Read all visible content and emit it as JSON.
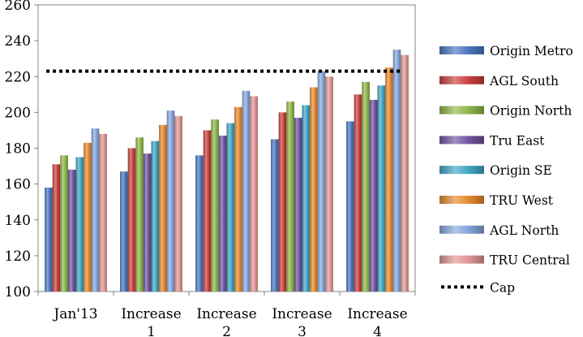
{
  "chart_data": {
    "type": "bar",
    "title": "",
    "xlabel": "",
    "ylabel": "",
    "ylim": [
      100,
      260
    ],
    "yticks": [
      100,
      120,
      140,
      160,
      180,
      200,
      220,
      240,
      260
    ],
    "grid": false,
    "legend_position": "right",
    "categories": [
      [
        "Jan'13"
      ],
      [
        "Increase",
        "1"
      ],
      [
        "Increase",
        "2"
      ],
      [
        "Increase",
        "3"
      ],
      [
        "Increase",
        "4"
      ]
    ],
    "series": [
      {
        "name": "Origin Metro",
        "color": "#4a76bf",
        "values": [
          158,
          167,
          176,
          185,
          195
        ]
      },
      {
        "name": "AGL South",
        "color": "#c9403d",
        "values": [
          171,
          180,
          190,
          200,
          210
        ]
      },
      {
        "name": "Origin North",
        "color": "#8db648",
        "values": [
          176,
          186,
          196,
          206,
          217
        ]
      },
      {
        "name": "Tru East",
        "color": "#7254a1",
        "values": [
          168,
          177,
          187,
          197,
          207
        ]
      },
      {
        "name": "Origin SE",
        "color": "#3fa6c4",
        "values": [
          175,
          184,
          194,
          204,
          215
        ]
      },
      {
        "name": "TRU West",
        "color": "#e68a2e",
        "values": [
          183,
          193,
          203,
          214,
          225
        ]
      },
      {
        "name": "AGL North",
        "color": "#86a5dc",
        "values": [
          191,
          201,
          212,
          223,
          235
        ]
      },
      {
        "name": "TRU Central",
        "color": "#e09694",
        "values": [
          188,
          198,
          209,
          220,
          232
        ]
      }
    ],
    "cap": {
      "name": "Cap",
      "value": 223,
      "color": "#000000"
    }
  }
}
